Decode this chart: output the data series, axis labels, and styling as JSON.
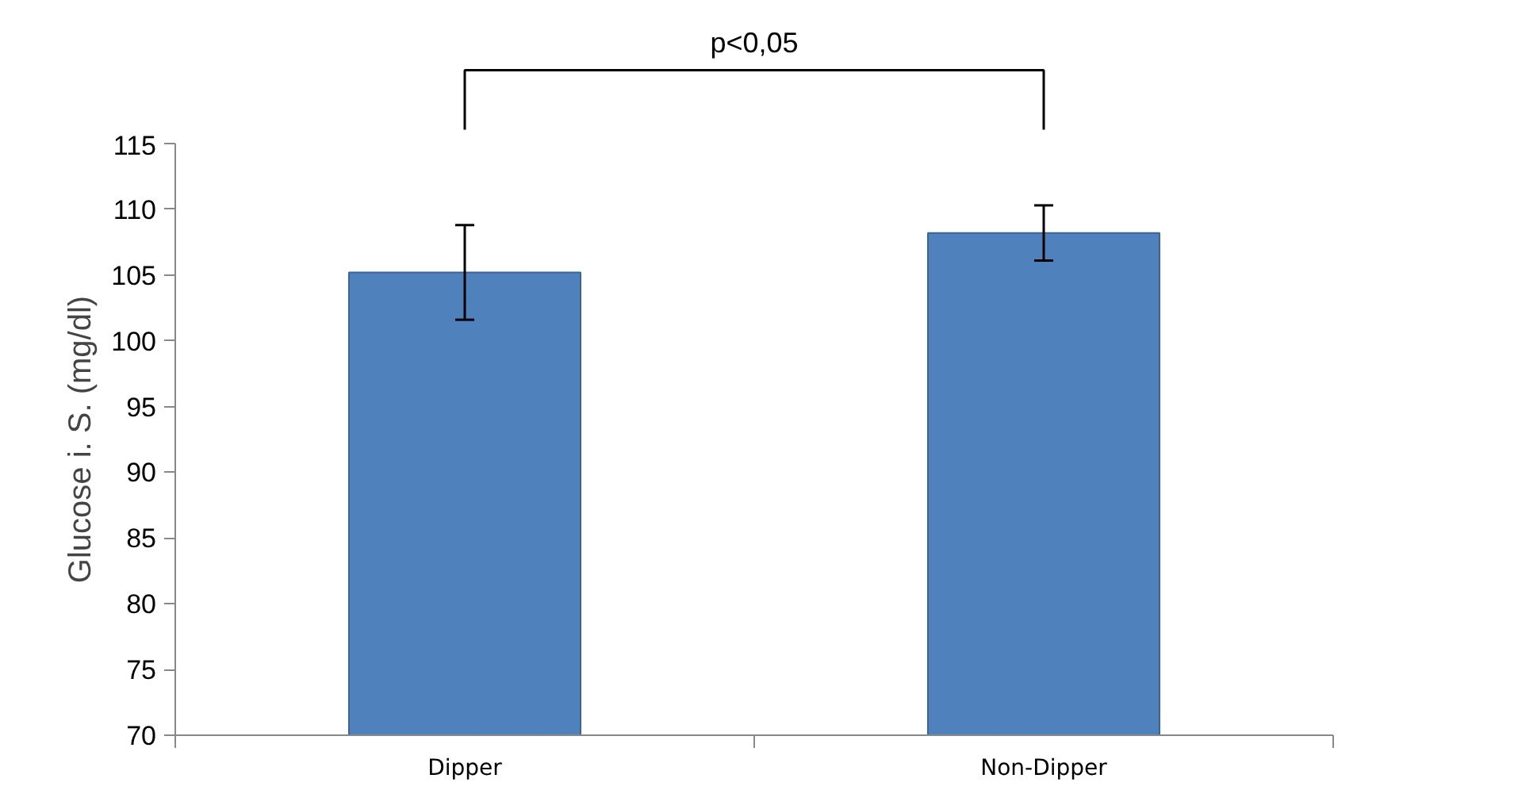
{
  "chart_data": {
    "type": "bar",
    "ylabel": "Glucose i. S. (mg/dl)",
    "categories": [
      "Dipper",
      "Non-Dipper"
    ],
    "values": [
      105.2,
      108.2
    ],
    "errors": [
      3.6,
      2.1
    ],
    "color": "#4f81bd",
    "ylim": [
      70,
      115
    ],
    "yticks": [
      70,
      75,
      80,
      85,
      90,
      95,
      100,
      105,
      110,
      115
    ],
    "annotations": [
      "p<0,05"
    ]
  }
}
